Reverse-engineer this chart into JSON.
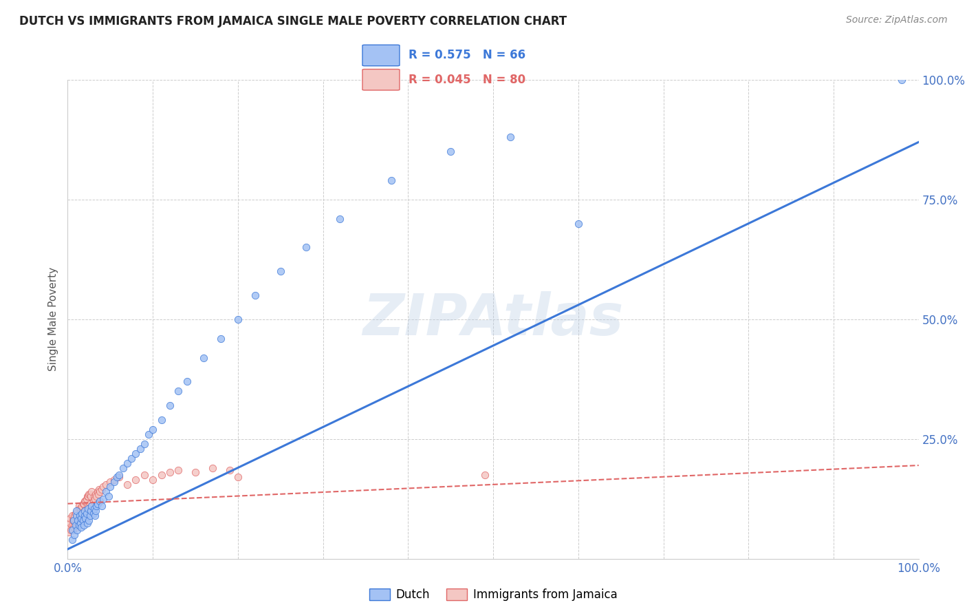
{
  "title": "DUTCH VS IMMIGRANTS FROM JAMAICA SINGLE MALE POVERTY CORRELATION CHART",
  "source": "Source: ZipAtlas.com",
  "xlabel": "",
  "ylabel": "Single Male Poverty",
  "watermark": "ZIPAtlas",
  "dutch_R": 0.575,
  "dutch_N": 66,
  "jamaica_R": 0.045,
  "jamaica_N": 80,
  "dutch_color": "#a4c2f4",
  "jamaica_color": "#f4c7c3",
  "dutch_line_color": "#3c78d8",
  "jamaica_line_color": "#e06666",
  "title_color": "#222222",
  "source_color": "#888888",
  "ylabel_color": "#555555",
  "tick_label_color": "#4472c4",
  "grid_color": "#cccccc",
  "background_color": "#ffffff",
  "xlim": [
    0.0,
    1.0
  ],
  "ylim": [
    0.0,
    1.0
  ],
  "dutch_x": [
    0.005,
    0.005,
    0.007,
    0.008,
    0.009,
    0.01,
    0.01,
    0.011,
    0.012,
    0.013,
    0.014,
    0.015,
    0.016,
    0.016,
    0.017,
    0.018,
    0.019,
    0.02,
    0.02,
    0.021,
    0.022,
    0.023,
    0.024,
    0.025,
    0.026,
    0.027,
    0.028,
    0.03,
    0.031,
    0.032,
    0.033,
    0.034,
    0.035,
    0.038,
    0.04,
    0.042,
    0.045,
    0.048,
    0.05,
    0.055,
    0.058,
    0.06,
    0.065,
    0.07,
    0.075,
    0.08,
    0.085,
    0.09,
    0.095,
    0.1,
    0.11,
    0.12,
    0.13,
    0.14,
    0.16,
    0.18,
    0.2,
    0.22,
    0.25,
    0.28,
    0.32,
    0.38,
    0.45,
    0.52,
    0.6,
    0.98
  ],
  "dutch_y": [
    0.04,
    0.06,
    0.08,
    0.05,
    0.07,
    0.09,
    0.1,
    0.06,
    0.08,
    0.07,
    0.09,
    0.075,
    0.085,
    0.065,
    0.095,
    0.08,
    0.07,
    0.09,
    0.1,
    0.085,
    0.095,
    0.075,
    0.105,
    0.08,
    0.09,
    0.1,
    0.11,
    0.095,
    0.105,
    0.09,
    0.1,
    0.11,
    0.115,
    0.12,
    0.11,
    0.125,
    0.14,
    0.13,
    0.15,
    0.16,
    0.17,
    0.175,
    0.19,
    0.2,
    0.21,
    0.22,
    0.23,
    0.24,
    0.26,
    0.27,
    0.29,
    0.32,
    0.35,
    0.37,
    0.42,
    0.46,
    0.5,
    0.55,
    0.6,
    0.65,
    0.71,
    0.79,
    0.85,
    0.88,
    0.7,
    1.0
  ],
  "jamaica_x": [
    0.001,
    0.002,
    0.003,
    0.003,
    0.004,
    0.005,
    0.005,
    0.006,
    0.006,
    0.007,
    0.007,
    0.008,
    0.008,
    0.009,
    0.009,
    0.01,
    0.01,
    0.011,
    0.011,
    0.012,
    0.012,
    0.013,
    0.013,
    0.014,
    0.014,
    0.015,
    0.015,
    0.016,
    0.016,
    0.017,
    0.017,
    0.018,
    0.018,
    0.019,
    0.019,
    0.02,
    0.02,
    0.021,
    0.021,
    0.022,
    0.022,
    0.023,
    0.023,
    0.024,
    0.024,
    0.025,
    0.025,
    0.026,
    0.026,
    0.027,
    0.027,
    0.028,
    0.028,
    0.03,
    0.031,
    0.032,
    0.033,
    0.034,
    0.035,
    0.036,
    0.037,
    0.038,
    0.04,
    0.042,
    0.045,
    0.05,
    0.055,
    0.06,
    0.07,
    0.08,
    0.09,
    0.1,
    0.11,
    0.12,
    0.13,
    0.15,
    0.17,
    0.19,
    0.2,
    0.49
  ],
  "jamaica_y": [
    0.055,
    0.065,
    0.075,
    0.085,
    0.06,
    0.07,
    0.09,
    0.06,
    0.08,
    0.065,
    0.085,
    0.07,
    0.09,
    0.075,
    0.095,
    0.065,
    0.085,
    0.07,
    0.09,
    0.075,
    0.1,
    0.08,
    0.11,
    0.085,
    0.105,
    0.08,
    0.1,
    0.085,
    0.105,
    0.09,
    0.11,
    0.09,
    0.115,
    0.095,
    0.115,
    0.1,
    0.12,
    0.1,
    0.12,
    0.105,
    0.125,
    0.11,
    0.13,
    0.105,
    0.13,
    0.11,
    0.135,
    0.115,
    0.135,
    0.105,
    0.13,
    0.11,
    0.14,
    0.12,
    0.13,
    0.125,
    0.135,
    0.13,
    0.14,
    0.135,
    0.145,
    0.14,
    0.145,
    0.15,
    0.155,
    0.16,
    0.165,
    0.17,
    0.155,
    0.165,
    0.175,
    0.165,
    0.175,
    0.18,
    0.185,
    0.18,
    0.19,
    0.185,
    0.17,
    0.175
  ],
  "dutch_line_x0": 0.0,
  "dutch_line_y0": 0.02,
  "dutch_line_x1": 1.0,
  "dutch_line_y1": 0.87,
  "jamaica_line_x0": 0.0,
  "jamaica_line_y0": 0.115,
  "jamaica_line_x1": 1.0,
  "jamaica_line_y1": 0.195
}
